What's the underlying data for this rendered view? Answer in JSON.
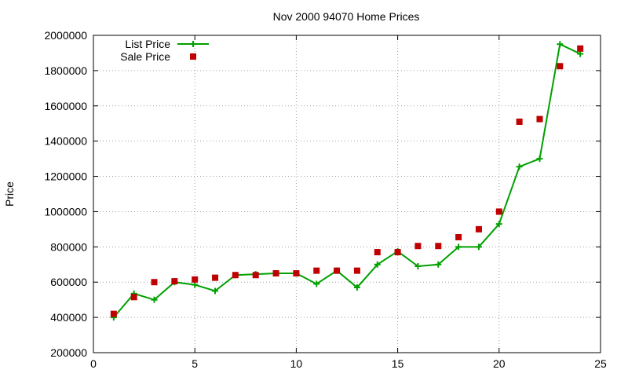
{
  "chart_data": {
    "type": "line",
    "title": "Nov 2000 94070 Home Prices",
    "xlabel": "",
    "ylabel": "Price",
    "xlim": [
      0,
      25
    ],
    "ylim": [
      200000,
      2000000
    ],
    "x_ticks": [
      0,
      5,
      10,
      15,
      20,
      25
    ],
    "y_ticks": [
      200000,
      400000,
      600000,
      800000,
      1000000,
      1200000,
      1400000,
      1600000,
      1800000,
      2000000
    ],
    "grid": true,
    "legend_position": "top-left",
    "series": [
      {
        "name": "List Price",
        "style": "line-points",
        "marker": "plus",
        "color": "#00a000",
        "x": [
          1,
          2,
          3,
          4,
          5,
          6,
          7,
          8,
          9,
          10,
          11,
          12,
          13,
          14,
          15,
          16,
          17,
          18,
          19,
          20,
          21,
          22,
          23,
          24
        ],
        "values": [
          400000,
          535000,
          500000,
          600000,
          585000,
          550000,
          640000,
          645000,
          650000,
          650000,
          590000,
          665000,
          570000,
          700000,
          775000,
          690000,
          700000,
          800000,
          800000,
          930000,
          1255000,
          1300000,
          1950000,
          1895000
        ]
      },
      {
        "name": "Sale Price",
        "style": "points",
        "marker": "square",
        "color": "#c00000",
        "x": [
          1,
          2,
          3,
          4,
          5,
          6,
          7,
          8,
          9,
          10,
          11,
          12,
          13,
          14,
          15,
          16,
          17,
          18,
          19,
          20,
          21,
          22,
          23,
          24
        ],
        "values": [
          420000,
          515000,
          600000,
          605000,
          615000,
          625000,
          640000,
          640000,
          650000,
          650000,
          665000,
          665000,
          665000,
          770000,
          770000,
          805000,
          805000,
          855000,
          900000,
          1000000,
          1510000,
          1525000,
          1825000,
          1925000
        ]
      }
    ]
  }
}
